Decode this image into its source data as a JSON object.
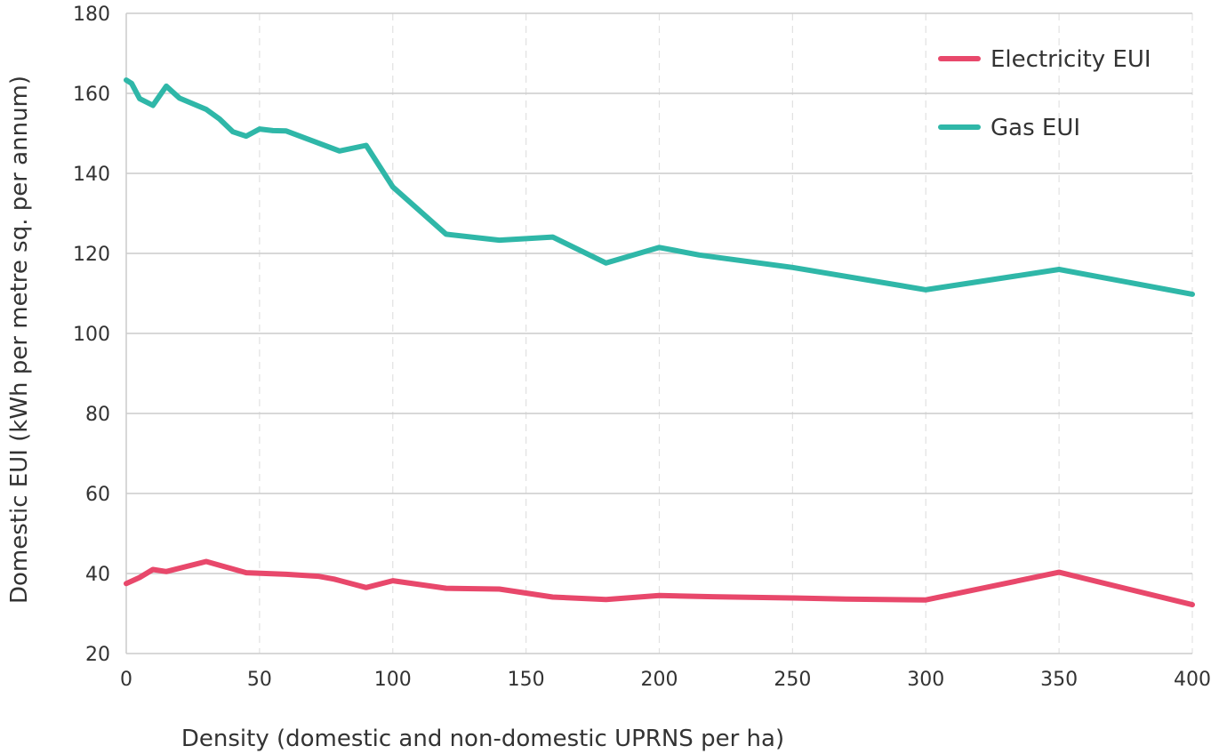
{
  "chart_data": {
    "type": "line",
    "title": "",
    "xlabel": "Density (domestic and non-domestic UPRNS per ha)",
    "ylabel": "Domestic EUI (kWh per metre sq. per annum)",
    "xlim": [
      0,
      400
    ],
    "ylim": [
      20,
      180
    ],
    "xticks": [
      0,
      50,
      100,
      150,
      200,
      250,
      300,
      350,
      400
    ],
    "yticks": [
      20,
      40,
      60,
      80,
      100,
      120,
      140,
      160,
      180
    ],
    "grid": "on",
    "legend_position": "top-right",
    "series": [
      {
        "name": "Electricity EUI",
        "color": "#e8486b",
        "points": [
          [
            0,
            37.5
          ],
          [
            5,
            39
          ],
          [
            10,
            41
          ],
          [
            15,
            40.5
          ],
          [
            30,
            43
          ],
          [
            45,
            40.2
          ],
          [
            60,
            39.8
          ],
          [
            72,
            39.3
          ],
          [
            78,
            38.6
          ],
          [
            90,
            36.5
          ],
          [
            100,
            38.2
          ],
          [
            120,
            36.3
          ],
          [
            140,
            36.1
          ],
          [
            160,
            34.1
          ],
          [
            180,
            33.5
          ],
          [
            200,
            34.5
          ],
          [
            220,
            34.2
          ],
          [
            250,
            33.9
          ],
          [
            270,
            33.6
          ],
          [
            300,
            33.4
          ],
          [
            350,
            40.3
          ],
          [
            400,
            32.2
          ]
        ]
      },
      {
        "name": "Gas EUI",
        "color": "#2fb7a8",
        "points": [
          [
            0,
            163.3
          ],
          [
            2,
            162.5
          ],
          [
            5,
            158.7
          ],
          [
            10,
            157
          ],
          [
            15,
            161.8
          ],
          [
            20,
            158.8
          ],
          [
            30,
            156
          ],
          [
            35,
            153.6
          ],
          [
            40,
            150.4
          ],
          [
            45,
            149.3
          ],
          [
            50,
            151.1
          ],
          [
            55,
            150.7
          ],
          [
            60,
            150.6
          ],
          [
            80,
            145.6
          ],
          [
            90,
            147
          ],
          [
            100,
            136.6
          ],
          [
            120,
            124.8
          ],
          [
            140,
            123.3
          ],
          [
            160,
            124.1
          ],
          [
            180,
            117.6
          ],
          [
            200,
            121.5
          ],
          [
            215,
            119.6
          ],
          [
            250,
            116.5
          ],
          [
            300,
            110.9
          ],
          [
            350,
            116
          ],
          [
            400,
            109.8
          ]
        ]
      }
    ]
  }
}
